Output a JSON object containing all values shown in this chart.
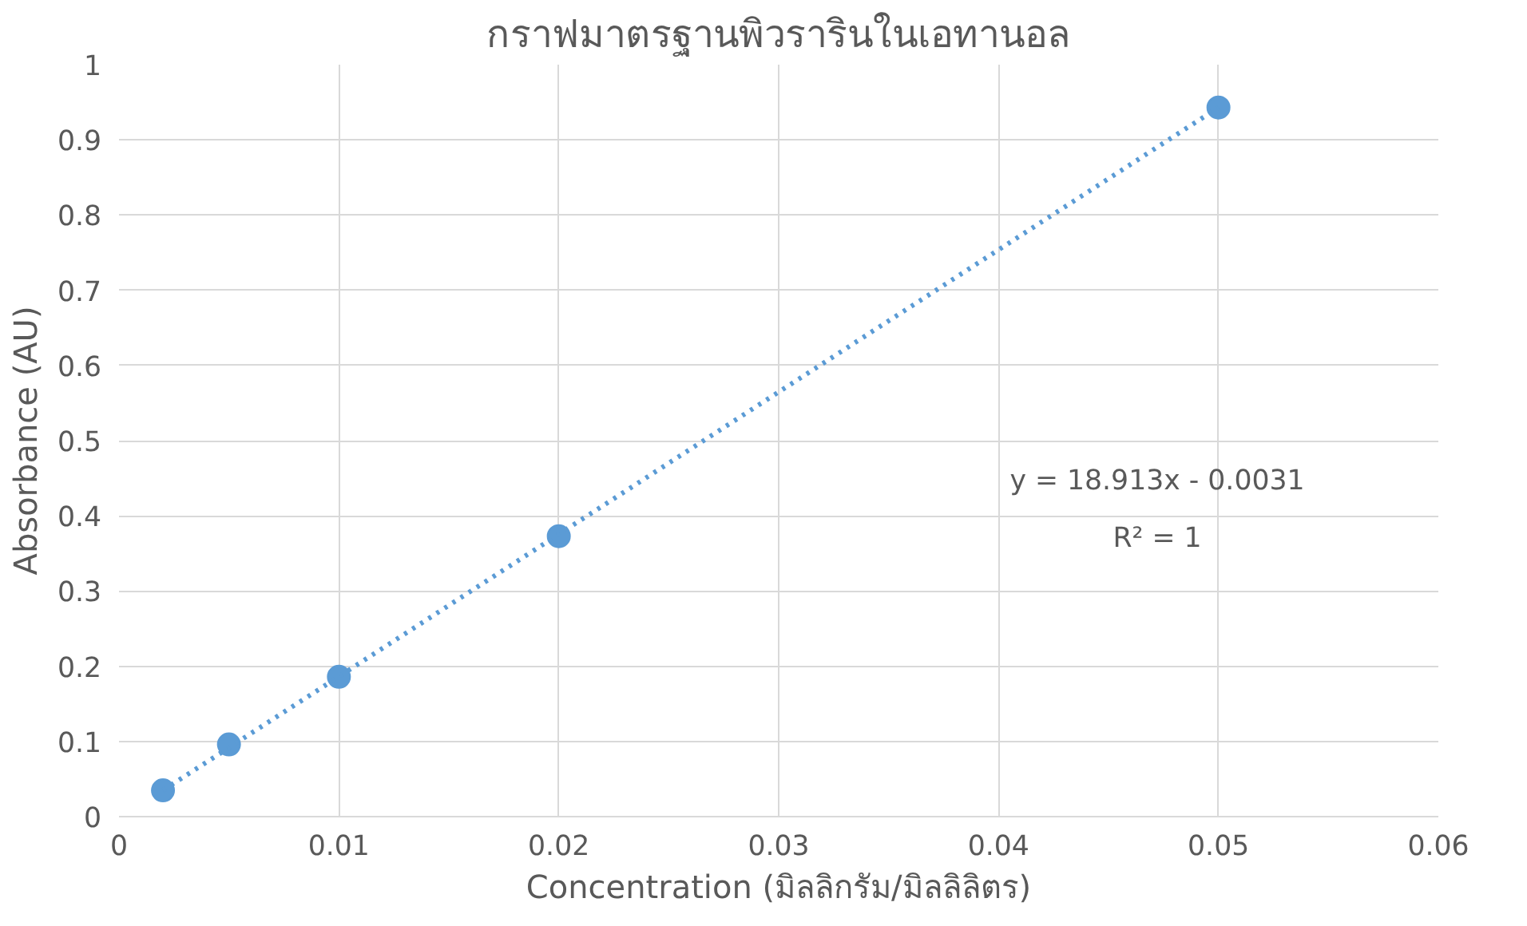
{
  "chart_data": {
    "type": "scatter",
    "title": "กราฟมาตรฐานพิวรารินในเอทานอล",
    "xlabel": "Concentration (มิลลิกรัม/มิลลิลิตร)",
    "ylabel": "Absorbance (AU)",
    "x": [
      0.002,
      0.005,
      0.01,
      0.02,
      0.05
    ],
    "series": [
      {
        "color": "#5b9bd5",
        "marker": "circle",
        "values": [
          0.035,
          0.096,
          0.186,
          0.373,
          0.943
        ]
      },
      {
        "type": "line",
        "color": "#5b9bd5",
        "line_style": "dotted",
        "x": [
          0.002,
          0.05
        ],
        "values": [
          0.035,
          0.943
        ]
      }
    ],
    "annotations": [
      "y = 18.913x - 0.0031",
      "R² = 1"
    ],
    "xlim": [
      0,
      0.06
    ],
    "xticks": [
      0,
      0.01,
      0.02,
      0.03,
      0.04,
      0.05,
      0.06
    ],
    "ylim": [
      0,
      1
    ],
    "yticks": [
      0,
      0.1,
      0.2,
      0.3,
      0.4,
      0.5,
      0.6,
      0.7,
      0.8,
      0.9,
      1
    ],
    "grid": true
  }
}
